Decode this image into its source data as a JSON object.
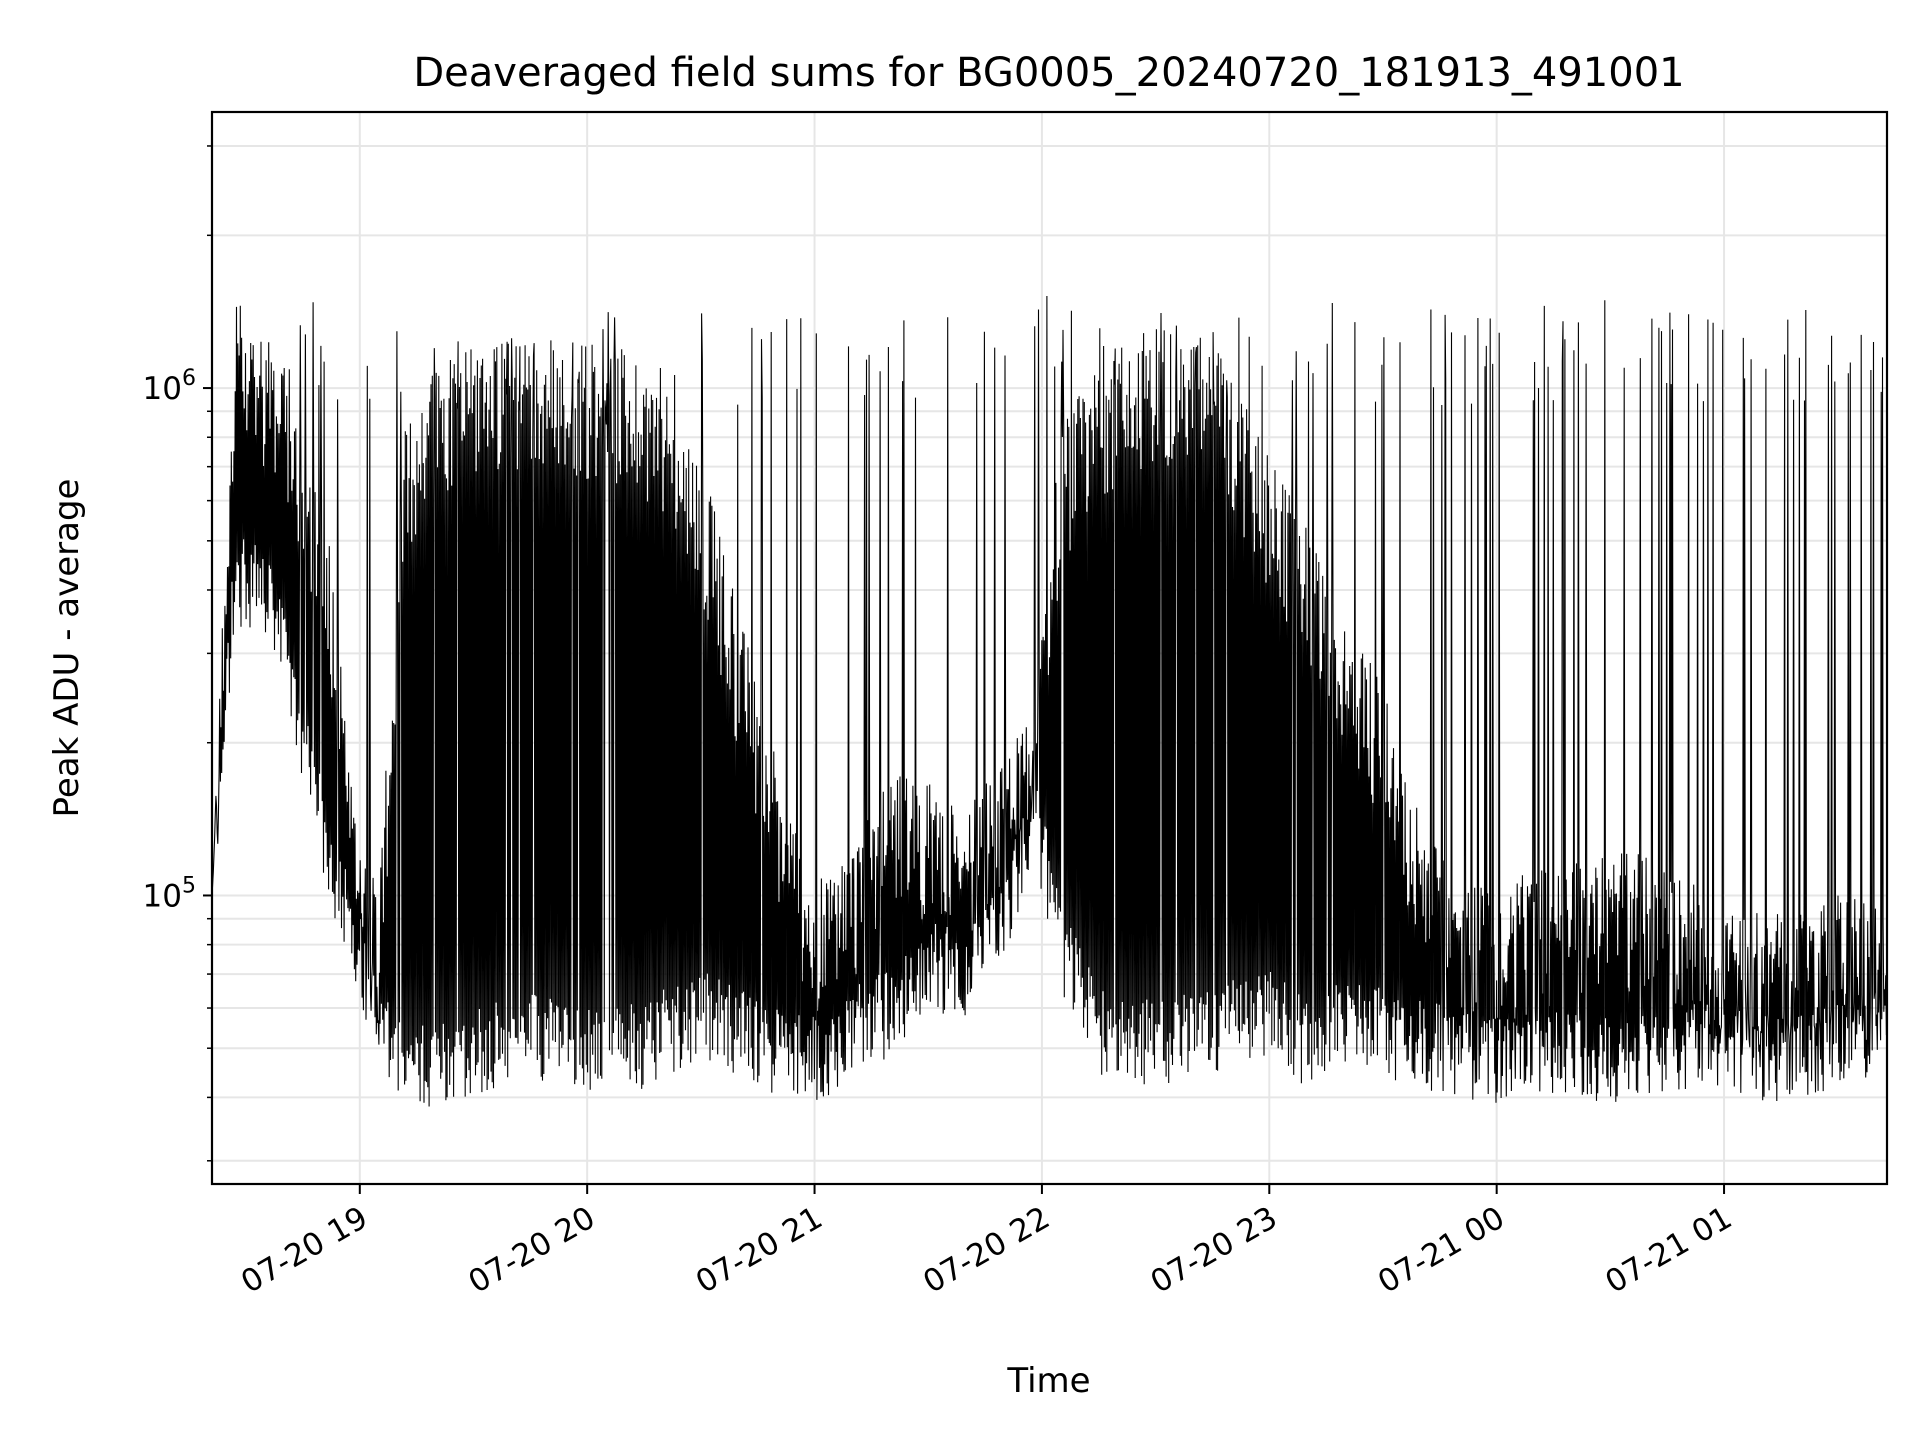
{
  "chart_data": {
    "type": "line",
    "title": "Deaveraged field sums for BG0005_20240720_181913_491001",
    "xlabel": "Time",
    "ylabel": "Peak ADU - average",
    "yscale": "log",
    "ylim": [
      27000,
      3500000
    ],
    "xlim": [
      "2024-07-20 18:21",
      "2024-07-21 01:43"
    ],
    "grid": true,
    "line_color": "#000000",
    "y_ticks": [
      {
        "value": 100000,
        "base": "10",
        "exp": "5"
      },
      {
        "value": 1000000,
        "base": "10",
        "exp": "6"
      }
    ],
    "x_ticks": [
      {
        "time": "2024-07-20 19:00",
        "label": "07-20 19"
      },
      {
        "time": "2024-07-20 20:00",
        "label": "07-20 20"
      },
      {
        "time": "2024-07-20 21:00",
        "label": "07-20 21"
      },
      {
        "time": "2024-07-20 22:00",
        "label": "07-20 22"
      },
      {
        "time": "2024-07-20 23:00",
        "label": "07-20 23"
      },
      {
        "time": "2024-07-21 00:00",
        "label": "07-21 00"
      },
      {
        "time": "2024-07-21 01:00",
        "label": "07-21 01"
      }
    ],
    "series": [
      {
        "values_note": "approximate envelope of the dense peak-ADU signal, sampled along time",
        "x": [
          "2024-07-20 18:21",
          "2024-07-20 18:27",
          "2024-07-20 18:33",
          "2024-07-20 18:38",
          "2024-07-20 18:45",
          "2024-07-20 18:52",
          "2024-07-20 18:58",
          "2024-07-20 19:05",
          "2024-07-20 19:12",
          "2024-07-20 19:20",
          "2024-07-20 19:30",
          "2024-07-20 19:45",
          "2024-07-20 20:00",
          "2024-07-20 20:15",
          "2024-07-20 20:30",
          "2024-07-20 20:40",
          "2024-07-20 20:50",
          "2024-07-20 21:00",
          "2024-07-20 21:10",
          "2024-07-20 21:20",
          "2024-07-20 21:30",
          "2024-07-20 21:40",
          "2024-07-20 21:50",
          "2024-07-20 21:58",
          "2024-07-20 22:05",
          "2024-07-20 22:15",
          "2024-07-20 22:30",
          "2024-07-20 22:45",
          "2024-07-20 23:00",
          "2024-07-20 23:10",
          "2024-07-20 23:20",
          "2024-07-20 23:30",
          "2024-07-20 23:40",
          "2024-07-20 23:50",
          "2024-07-21 00:00",
          "2024-07-21 00:15",
          "2024-07-21 00:30",
          "2024-07-21 00:45",
          "2024-07-21 01:00",
          "2024-07-21 01:15",
          "2024-07-21 01:30",
          "2024-07-21 01:43"
        ],
        "lows": [
          100000,
          420000,
          420000,
          350000,
          200000,
          120000,
          90000,
          55000,
          45000,
          48000,
          50000,
          55000,
          50000,
          52000,
          60000,
          55000,
          50000,
          48000,
          55000,
          60000,
          75000,
          70000,
          90000,
          150000,
          80000,
          55000,
          52000,
          55000,
          60000,
          52000,
          58000,
          55000,
          52000,
          50000,
          48000,
          50000,
          48000,
          50000,
          52000,
          48000,
          52000,
          55000
        ],
        "highs": [
          100000,
          1500000,
          1300000,
          1200000,
          800000,
          500000,
          150000,
          100000,
          800000,
          1100000,
          1200000,
          1200000,
          1200000,
          1100000,
          700000,
          350000,
          180000,
          100000,
          120000,
          170000,
          160000,
          140000,
          180000,
          220000,
          800000,
          1100000,
          1300000,
          1200000,
          700000,
          500000,
          350000,
          250000,
          140000,
          100000,
          100000,
          110000,
          120000,
          110000,
          90000,
          90000,
          100000,
          90000
        ],
        "spike_levels": [
          1300000,
          1200000,
          1350000,
          1250000,
          1150000,
          1300000,
          1400000,
          1250000,
          1200000,
          1300000,
          1150000,
          1350000,
          1200000,
          1280000,
          1320000,
          1180000,
          1260000,
          1220000,
          1340000,
          1240000
        ]
      }
    ]
  }
}
